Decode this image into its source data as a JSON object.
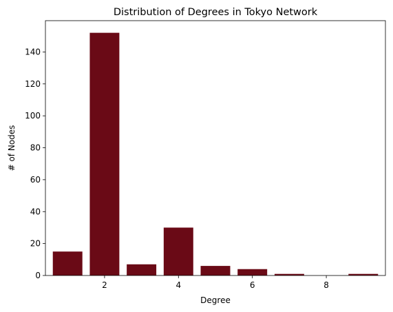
{
  "chart_data": {
    "type": "bar",
    "title": "Distribution of Degrees in Tokyo Network",
    "xlabel": "Degree",
    "ylabel": "# of Nodes",
    "x": [
      1,
      2,
      3,
      4,
      5,
      6,
      7,
      8,
      9
    ],
    "values": [
      15,
      152,
      7,
      30,
      6,
      4,
      1,
      0,
      1
    ],
    "bar_color": "#6a0a16",
    "xlim": [
      0.4,
      9.6
    ],
    "ylim": [
      0,
      159.6
    ],
    "xticks": [
      2,
      4,
      6,
      8
    ],
    "yticks": [
      0,
      20,
      40,
      60,
      80,
      100,
      120,
      140
    ],
    "grid": false,
    "legend": "none"
  }
}
